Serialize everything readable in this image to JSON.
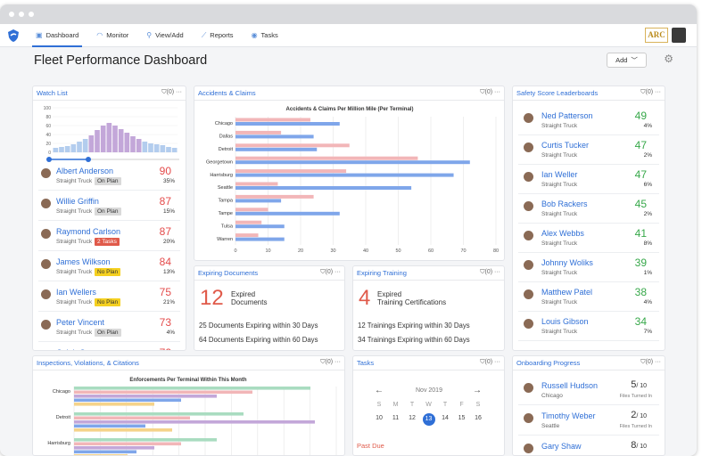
{
  "nav": {
    "items": [
      {
        "label": "Dashboard",
        "icon": "dashboard-icon"
      },
      {
        "label": "Monitor",
        "icon": "wifi-icon"
      },
      {
        "label": "View/Add",
        "icon": "search-icon"
      },
      {
        "label": "Reports",
        "icon": "chart-icon"
      },
      {
        "label": "Tasks",
        "icon": "eye-icon"
      }
    ],
    "brand": "ARC"
  },
  "page": {
    "title": "Fleet Performance Dashboard",
    "add_label": "Add"
  },
  "watch_list": {
    "title": "Watch List",
    "filter": "(0)",
    "histogram": {
      "ylabels": [
        "100",
        "80",
        "60",
        "40",
        "20",
        "0"
      ],
      "values": [
        10,
        12,
        14,
        18,
        24,
        30,
        38,
        50,
        60,
        66,
        60,
        52,
        44,
        36,
        30,
        24,
        20,
        18,
        16,
        12,
        10
      ]
    },
    "people": [
      {
        "name": "Albert Anderson",
        "sub": "Straight Truck",
        "badge": "On Plan",
        "score": "90",
        "pct": "35%"
      },
      {
        "name": "Willie Griffin",
        "sub": "Straight Truck",
        "badge": "On Plan",
        "score": "87",
        "pct": "15%"
      },
      {
        "name": "Raymond Carlson",
        "sub": "Straight Truck",
        "badge": "2 Tasks",
        "score": "87",
        "pct": "20%"
      },
      {
        "name": "James Wilkson",
        "sub": "Straight Truck",
        "badge": "No Plan",
        "score": "84",
        "pct": "13%"
      },
      {
        "name": "Ian Wellers",
        "sub": "Straight Truck",
        "badge": "No Plan",
        "score": "75",
        "pct": "21%"
      },
      {
        "name": "Peter Vincent",
        "sub": "Straight Truck",
        "badge": "On Plan",
        "score": "73",
        "pct": "4%"
      },
      {
        "name": "Caleb Germanson",
        "sub": "",
        "badge": "",
        "score": "72",
        "pct": ""
      }
    ]
  },
  "accidents": {
    "title": "Accidents & Claims",
    "filter": "(0)"
  },
  "leaderboard": {
    "title": "Safety Score Leaderboards",
    "filter": "(0)",
    "people": [
      {
        "name": "Ned Patterson",
        "sub": "Straight Truck",
        "score": "49",
        "pct": "4%"
      },
      {
        "name": "Curtis Tucker",
        "sub": "Straight Truck",
        "score": "47",
        "pct": "2%"
      },
      {
        "name": "Ian Weller",
        "sub": "Straight Truck",
        "score": "47",
        "pct": "6%"
      },
      {
        "name": "Bob Rackers",
        "sub": "Straight Truck",
        "score": "45",
        "pct": "2%"
      },
      {
        "name": "Alex Webbs",
        "sub": "Straight Truck",
        "score": "41",
        "pct": "8%"
      },
      {
        "name": "Johnny Woliks",
        "sub": "Straight Truck",
        "score": "39",
        "pct": "1%"
      },
      {
        "name": "Matthew Patel",
        "sub": "Straight Truck",
        "score": "38",
        "pct": "4%"
      },
      {
        "name": "Louis Gibson",
        "sub": "Straight Truck",
        "score": "34",
        "pct": "7%"
      }
    ]
  },
  "expiring_documents": {
    "title": "Expiring Documents",
    "filter": "(0)",
    "count": "12",
    "note1": "Expired",
    "note2": "Documents",
    "line1": "25 Documents Expiring within 30 Days",
    "line2": "64 Documents Expiring within 60 Days"
  },
  "expiring_training": {
    "title": "Expiring Training",
    "filter": "(0)",
    "count": "4",
    "note1": "Expired",
    "note2": "Training Certifications",
    "line1": "12 Trainings Expiring within 30 Days",
    "line2": "34 Trainings Expiring within 60 Days"
  },
  "inspections": {
    "title": "Inspections, Violations, & Citations",
    "filter": "(0)"
  },
  "tasks": {
    "title": "Tasks",
    "filter": "(0)",
    "month": "Nov 2019",
    "weekdays": [
      "S",
      "M",
      "T",
      "W",
      "T",
      "F",
      "S"
    ],
    "days": [
      "10",
      "11",
      "12",
      "13",
      "14",
      "15",
      "16"
    ],
    "past_due": "Past Due"
  },
  "onboarding": {
    "title": "Onboarding Progress",
    "filter": "(0)",
    "people": [
      {
        "name": "Russell Hudson",
        "sub": "Chicago",
        "count": "5",
        "of": "/ 10",
        "note": "Files Turned In"
      },
      {
        "name": "Timothy Weber",
        "sub": "Seattle",
        "count": "2",
        "of": "/ 10",
        "note": "Files Turned In"
      },
      {
        "name": "Gary Shaw",
        "sub": "",
        "count": "8",
        "of": "/ 10",
        "note": ""
      }
    ]
  },
  "chart_data": [
    {
      "type": "bar",
      "title": "Accidents & Claims Per Million Mile (Per Terminal)",
      "categories": [
        "Chicago",
        "Dallas",
        "Detroit",
        "Georgetown",
        "Harrisburg",
        "Seattle",
        "Tampa",
        "Tampe",
        "Tulsa",
        "Warren"
      ],
      "series": [
        {
          "values": [
            23,
            14,
            35,
            56,
            34,
            13,
            24,
            10,
            8,
            7
          ]
        },
        {
          "values": [
            32,
            24,
            25,
            72,
            67,
            54,
            14,
            32,
            15,
            15
          ]
        }
      ],
      "xticks": [
        "0",
        "10",
        "20",
        "30",
        "40",
        "50",
        "60",
        "70",
        "80"
      ],
      "xlim": [
        0,
        80
      ],
      "colors": [
        "#f2b6b8",
        "#7fa6ea"
      ]
    },
    {
      "type": "bar",
      "title": "Enforcements Per Terminal Within This Month",
      "categories": [
        "Chicago",
        "Detroit",
        "Harrisburg"
      ]
    }
  ]
}
